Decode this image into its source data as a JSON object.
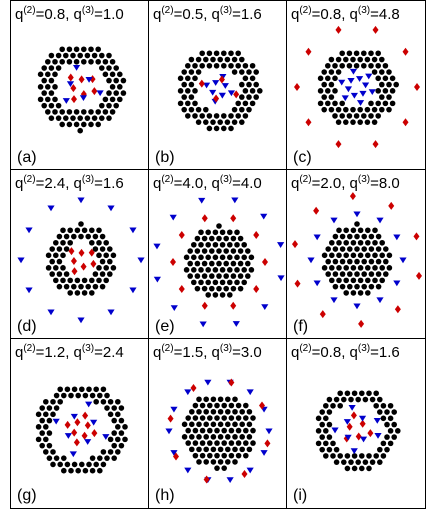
{
  "panels": [
    {
      "label": "(a)",
      "q2": "0.8",
      "q3": "1.0"
    },
    {
      "label": "(b)",
      "q2": "0.5",
      "q3": "1.6"
    },
    {
      "label": "(c)",
      "q2": "0.8",
      "q3": "4.8"
    },
    {
      "label": "(d)",
      "q2": "2.4",
      "q3": "1.6"
    },
    {
      "label": "(e)",
      "q2": "4.0",
      "q3": "4.0"
    },
    {
      "label": "(f)",
      "q2": "2.0",
      "q3": "8.0"
    },
    {
      "label": "(g)",
      "q2": "1.2",
      "q3": "2.4"
    },
    {
      "label": "(h)",
      "q2": "1.5",
      "q3": "3.0"
    },
    {
      "label": "(i)",
      "q2": "0.8",
      "q3": "1.6"
    }
  ],
  "symbols": {
    "charge1": {
      "marker": "circle",
      "color": "#000000"
    },
    "charge2": {
      "marker": "triangle-down",
      "color": "#0000cc"
    },
    "charge3": {
      "marker": "diamond",
      "color": "#cc0000"
    }
  }
}
